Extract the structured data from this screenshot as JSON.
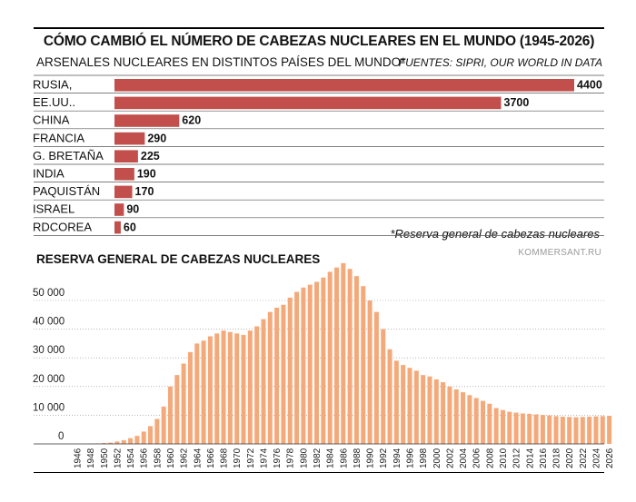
{
  "title": "CÓMO CAMBIÓ EL NÚMERO DE CABEZAS NUCLEARES EN EL MUNDO (1945-2026)",
  "subtitle": "ARSENALES NUCLEARES EN DISTINTOS PAÍSES DEL MUNDO*",
  "source": "FUENTES: SIPRI, OUR WORLD IN DATA",
  "footnote": "*Reserva general de cabezas nucleares",
  "credit": "KOMMERSANT.RU",
  "section2_title": "RESERVA GENERAL DE CABEZAS NUCLEARES",
  "colors": {
    "bar_country": "#c24f4b",
    "bar_stock": "#f4a97a",
    "grid": "#555555"
  },
  "chart_data": [
    {
      "type": "bar",
      "orientation": "horizontal",
      "categories": [
        "RUSIA,",
        "EE.UU..",
        "CHINA",
        "FRANCIA",
        "G. BRETAÑA",
        "INDIA",
        "PAQUISTÁN",
        "ISRAEL",
        "RDCOREA"
      ],
      "values": [
        4400,
        3700,
        620,
        290,
        225,
        190,
        170,
        90,
        60
      ],
      "data_labels": true,
      "grid": true
    },
    {
      "type": "bar",
      "categories": [
        1946,
        1947,
        1948,
        1949,
        1950,
        1951,
        1952,
        1953,
        1954,
        1955,
        1956,
        1957,
        1958,
        1959,
        1960,
        1961,
        1962,
        1963,
        1964,
        1965,
        1966,
        1967,
        1968,
        1969,
        1970,
        1971,
        1972,
        1973,
        1974,
        1975,
        1976,
        1977,
        1978,
        1979,
        1980,
        1981,
        1982,
        1983,
        1984,
        1985,
        1986,
        1987,
        1988,
        1989,
        1990,
        1991,
        1992,
        1993,
        1994,
        1995,
        1996,
        1997,
        1998,
        1999,
        2000,
        2001,
        2002,
        2003,
        2004,
        2005,
        2006,
        2007,
        2008,
        2009,
        2010,
        2011,
        2012,
        2013,
        2014,
        2015,
        2016,
        2017,
        2018,
        2019,
        2020,
        2021,
        2022,
        2023,
        2024,
        2025,
        2026
      ],
      "values": [
        9,
        13,
        50,
        170,
        300,
        440,
        840,
        1300,
        2000,
        2800,
        4300,
        6200,
        8700,
        13000,
        20000,
        24000,
        28000,
        32000,
        35000,
        36000,
        37500,
        38500,
        39500,
        39000,
        38500,
        38000,
        39500,
        41000,
        43500,
        46000,
        47500,
        48500,
        51000,
        53000,
        54500,
        55500,
        56500,
        58000,
        60000,
        61500,
        63000,
        61000,
        58500,
        55000,
        50000,
        46000,
        40000,
        33000,
        29000,
        27500,
        26500,
        25500,
        24000,
        23500,
        22500,
        21500,
        20000,
        19000,
        18000,
        17000,
        16000,
        15000,
        14000,
        12500,
        11800,
        11200,
        10900,
        10600,
        10500,
        10300,
        10100,
        9900,
        9700,
        9500,
        9400,
        9300,
        9400,
        9500,
        9600,
        9700,
        9800
      ],
      "xticks": [
        "1946",
        "1948",
        "1950",
        "1952",
        "1954",
        "1956",
        "1958",
        "1960",
        "1962",
        "1964",
        "1966",
        "1968",
        "1970",
        "1972",
        "1974",
        "1976",
        "1978",
        "1980",
        "1982",
        "1984",
        "1986",
        "1988",
        "1990",
        "1992",
        "1994",
        "1996",
        "1998",
        "2000",
        "2002",
        "2004",
        "2006",
        "2008",
        "2010",
        "2012",
        "2014",
        "2016",
        "2018",
        "2020",
        "2022",
        "2024",
        "2026"
      ],
      "yticks": [
        "0",
        "10 000",
        "20 000",
        "30 000",
        "40 000",
        "50 000"
      ],
      "ylim": [
        0,
        64000
      ],
      "grid": true
    }
  ]
}
